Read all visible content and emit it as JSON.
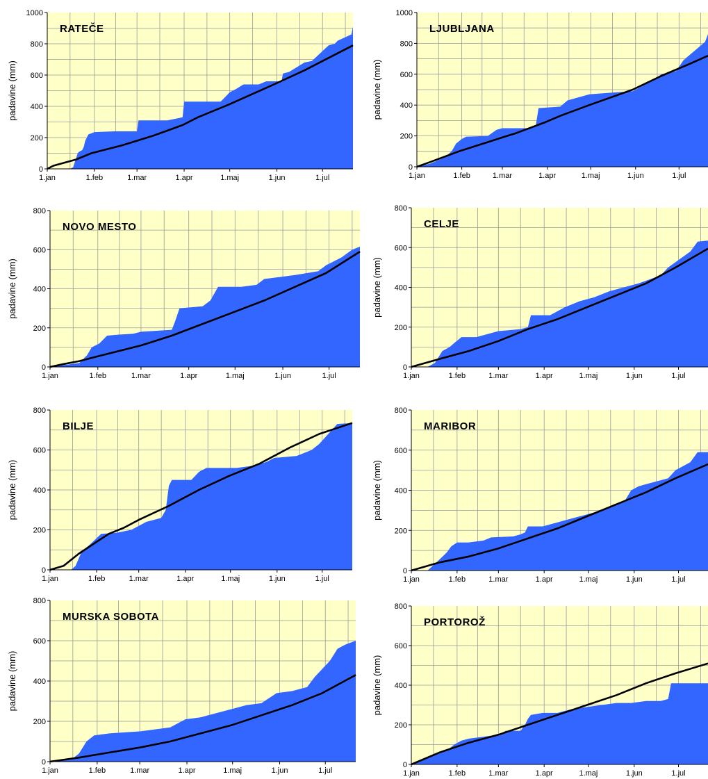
{
  "chart_data": [
    {
      "type": "area",
      "title": "RATEČE",
      "ylabel": "padavine (mm)",
      "ylim": [
        0,
        1000
      ],
      "yticks": [
        0,
        200,
        400,
        600,
        800,
        1000
      ],
      "xticks": [
        "1.jan",
        "1.feb",
        "1.mar",
        "1.apr",
        "1.maj",
        "1.jun",
        "1.jul"
      ],
      "grid": true,
      "colors": {
        "area": "#3366ff",
        "line": "#000000",
        "plot_bg": "#ffffc8"
      },
      "series": [
        {
          "type": "area",
          "x": [
            1,
            16,
            18,
            21,
            22,
            24,
            25,
            26,
            28,
            32,
            45,
            60,
            61,
            80,
            85,
            90,
            91,
            115,
            121,
            125,
            130,
            140,
            145,
            155,
            156,
            160,
            170,
            175,
            186,
            190,
            192,
            201,
            202
          ],
          "y": [
            0,
            0,
            10,
            100,
            110,
            120,
            140,
            180,
            220,
            235,
            240,
            240,
            310,
            310,
            320,
            330,
            430,
            430,
            490,
            510,
            540,
            540,
            560,
            560,
            610,
            620,
            680,
            690,
            790,
            800,
            820,
            860,
            910
          ]
        },
        {
          "type": "line",
          "x": [
            1,
            5,
            20,
            30,
            50,
            60,
            70,
            90,
            100,
            120,
            150,
            170,
            190,
            202
          ],
          "y": [
            0,
            20,
            60,
            100,
            150,
            180,
            210,
            280,
            330,
            410,
            540,
            630,
            730,
            790
          ]
        }
      ]
    },
    {
      "type": "area",
      "title": "LJUBLJANA",
      "ylabel": "padavine (mm)",
      "ylim": [
        0,
        1000
      ],
      "yticks": [
        0,
        200,
        400,
        600,
        800,
        1000
      ],
      "xticks": [
        "1.jan",
        "1.feb",
        "1.mar",
        "1.apr",
        "1.maj",
        "1.jun",
        "1.jul"
      ],
      "grid": true,
      "colors": {
        "area": "#3366ff",
        "line": "#000000",
        "plot_bg": "#ffffc8"
      },
      "series": [
        {
          "type": "area",
          "x": [
            1,
            10,
            20,
            25,
            28,
            32,
            35,
            50,
            56,
            60,
            78,
            83,
            85,
            100,
            105,
            120,
            135,
            150,
            160,
            170,
            180,
            185,
            190,
            200,
            202
          ],
          "y": [
            0,
            20,
            60,
            100,
            150,
            180,
            195,
            200,
            240,
            250,
            250,
            260,
            380,
            390,
            430,
            470,
            480,
            490,
            540,
            600,
            620,
            690,
            730,
            810,
            860
          ]
        },
        {
          "type": "line",
          "x": [
            1,
            10,
            30,
            50,
            60,
            70,
            90,
            100,
            120,
            150,
            170,
            190,
            202
          ],
          "y": [
            0,
            30,
            100,
            160,
            190,
            220,
            290,
            330,
            400,
            500,
            590,
            670,
            720
          ]
        }
      ]
    },
    {
      "type": "area",
      "title": "NOVO MESTO",
      "ylabel": "padavine (mm)",
      "ylim": [
        0,
        800
      ],
      "yticks": [
        0,
        200,
        400,
        600,
        800
      ],
      "xticks": [
        "1.jan",
        "1.feb",
        "1.mar",
        "1.apr",
        "1.maj",
        "1.jun",
        "1.jul"
      ],
      "grid": true,
      "colors": {
        "area": "#3366ff",
        "line": "#000000",
        "plot_bg": "#ffffc8"
      },
      "series": [
        {
          "type": "area",
          "x": [
            1,
            20,
            25,
            28,
            33,
            38,
            45,
            55,
            60,
            80,
            82,
            85,
            100,
            105,
            110,
            125,
            135,
            140,
            150,
            160,
            175,
            180,
            190,
            197,
            202
          ],
          "y": [
            0,
            20,
            60,
            100,
            120,
            160,
            165,
            170,
            180,
            190,
            230,
            300,
            310,
            340,
            410,
            410,
            420,
            450,
            460,
            470,
            490,
            520,
            560,
            600,
            615
          ]
        },
        {
          "type": "line",
          "x": [
            1,
            10,
            20,
            30,
            40,
            60,
            80,
            100,
            120,
            140,
            160,
            180,
            202
          ],
          "y": [
            0,
            15,
            30,
            50,
            70,
            110,
            160,
            220,
            280,
            340,
            410,
            480,
            590
          ]
        }
      ]
    },
    {
      "type": "area",
      "title": "CELJE",
      "ylabel": "padavine (mm)",
      "ylim": [
        0,
        800
      ],
      "yticks": [
        0,
        200,
        400,
        600,
        800
      ],
      "xticks": [
        "1.jan",
        "1.feb",
        "1.mar",
        "1.apr",
        "1.maj",
        "1.jun",
        "1.jul"
      ],
      "grid": true,
      "colors": {
        "area": "#3366ff",
        "line": "#000000",
        "plot_bg": "#ffffc8"
      },
      "series": [
        {
          "type": "area",
          "x": [
            1,
            12,
            17,
            22,
            27,
            30,
            35,
            45,
            50,
            60,
            75,
            80,
            82,
            95,
            105,
            115,
            125,
            135,
            145,
            155,
            170,
            175,
            190,
            195,
            202
          ],
          "y": [
            0,
            0,
            20,
            80,
            100,
            120,
            150,
            150,
            160,
            180,
            190,
            200,
            260,
            260,
            300,
            330,
            350,
            380,
            400,
            420,
            460,
            500,
            580,
            630,
            635
          ]
        },
        {
          "type": "line",
          "x": [
            1,
            20,
            40,
            60,
            80,
            100,
            120,
            140,
            160,
            180,
            202
          ],
          "y": [
            0,
            40,
            80,
            130,
            190,
            240,
            300,
            360,
            420,
            500,
            595
          ]
        }
      ]
    },
    {
      "type": "area",
      "title": "BILJE",
      "ylabel": "padavine (mm)",
      "ylim": [
        0,
        800
      ],
      "yticks": [
        0,
        200,
        400,
        600,
        800
      ],
      "xticks": [
        "1.jan",
        "1.feb",
        "1.mar",
        "1.apr",
        "1.maj",
        "1.jun",
        "1.jul"
      ],
      "grid": true,
      "colors": {
        "area": "#3366ff",
        "line": "#000000",
        "plot_bg": "#ffffc8"
      },
      "series": [
        {
          "type": "area",
          "x": [
            1,
            15,
            18,
            22,
            28,
            35,
            45,
            55,
            65,
            75,
            78,
            80,
            82,
            95,
            100,
            105,
            125,
            135,
            145,
            150,
            165,
            175,
            180,
            192,
            202
          ],
          "y": [
            0,
            0,
            20,
            90,
            130,
            180,
            185,
            200,
            240,
            260,
            300,
            420,
            450,
            450,
            490,
            510,
            510,
            520,
            540,
            560,
            570,
            600,
            630,
            730,
            735
          ]
        },
        {
          "type": "line",
          "x": [
            1,
            10,
            20,
            30,
            40,
            50,
            60,
            80,
            100,
            120,
            140,
            160,
            180,
            202
          ],
          "y": [
            0,
            20,
            80,
            130,
            180,
            210,
            250,
            320,
            400,
            470,
            530,
            610,
            680,
            735
          ]
        }
      ]
    },
    {
      "type": "area",
      "title": "MARIBOR",
      "ylabel": "padavine (mm)",
      "ylim": [
        0,
        800
      ],
      "yticks": [
        0,
        200,
        400,
        600,
        800
      ],
      "xticks": [
        "1.jan",
        "1.feb",
        "1.mar",
        "1.apr",
        "1.maj",
        "1.jun",
        "1.jul"
      ],
      "grid": true,
      "colors": {
        "area": "#3366ff",
        "line": "#000000",
        "plot_bg": "#ffffc8"
      },
      "series": [
        {
          "type": "area",
          "x": [
            1,
            12,
            18,
            25,
            28,
            32,
            40,
            50,
            55,
            70,
            75,
            78,
            80,
            90,
            100,
            110,
            120,
            130,
            140,
            145,
            150,
            155,
            160,
            175,
            180,
            190,
            195,
            202
          ],
          "y": [
            0,
            0,
            40,
            90,
            120,
            140,
            140,
            150,
            165,
            170,
            180,
            190,
            220,
            220,
            240,
            260,
            280,
            300,
            330,
            340,
            400,
            420,
            430,
            460,
            500,
            540,
            590,
            590
          ]
        },
        {
          "type": "line",
          "x": [
            1,
            20,
            40,
            60,
            80,
            100,
            120,
            140,
            160,
            180,
            202
          ],
          "y": [
            0,
            40,
            70,
            110,
            160,
            210,
            270,
            330,
            390,
            460,
            530
          ]
        }
      ]
    },
    {
      "type": "area",
      "title": "MURSKA SOBOTA",
      "ylabel": "padavine (mm)",
      "ylim": [
        0,
        800
      ],
      "yticks": [
        0,
        200,
        400,
        600,
        800
      ],
      "xticks": [
        "1.jan",
        "1.feb",
        "1.mar",
        "1.apr",
        "1.maj",
        "1.jun",
        "1.jul"
      ],
      "grid": true,
      "colors": {
        "area": "#3366ff",
        "line": "#000000",
        "plot_bg": "#ffffc8"
      },
      "series": [
        {
          "type": "area",
          "x": [
            1,
            15,
            20,
            25,
            30,
            40,
            50,
            60,
            70,
            80,
            90,
            100,
            110,
            120,
            130,
            140,
            150,
            160,
            165,
            170,
            175,
            180,
            185,
            190,
            195,
            202
          ],
          "y": [
            0,
            10,
            40,
            100,
            130,
            140,
            145,
            150,
            160,
            170,
            210,
            220,
            240,
            260,
            280,
            290,
            340,
            350,
            360,
            370,
            420,
            460,
            500,
            560,
            580,
            600
          ]
        },
        {
          "type": "line",
          "x": [
            1,
            20,
            40,
            60,
            80,
            100,
            120,
            140,
            160,
            180,
            202
          ],
          "y": [
            0,
            20,
            45,
            70,
            100,
            140,
            180,
            230,
            280,
            340,
            430
          ]
        }
      ]
    },
    {
      "type": "area",
      "title": "PORTOROŽ",
      "ylabel": "padavine (mm)",
      "ylim": [
        0,
        800
      ],
      "yticks": [
        0,
        200,
        400,
        600,
        800
      ],
      "xticks": [
        "1.jan",
        "1.feb",
        "1.mar",
        "1.apr",
        "1.maj",
        "1.jun",
        "1.jul"
      ],
      "grid": true,
      "colors": {
        "area": "#3366ff",
        "line": "#000000",
        "plot_bg": "#ffffc8"
      },
      "series": [
        {
          "type": "area",
          "x": [
            1,
            25,
            30,
            35,
            40,
            50,
            60,
            65,
            75,
            78,
            80,
            82,
            90,
            100,
            110,
            120,
            130,
            140,
            150,
            160,
            170,
            175,
            177,
            202
          ],
          "y": [
            0,
            70,
            100,
            120,
            130,
            140,
            150,
            170,
            170,
            200,
            230,
            250,
            260,
            260,
            280,
            290,
            300,
            310,
            310,
            320,
            320,
            330,
            410,
            410
          ]
        },
        {
          "type": "line",
          "x": [
            1,
            20,
            40,
            60,
            80,
            100,
            120,
            140,
            160,
            180,
            202
          ],
          "y": [
            0,
            60,
            110,
            150,
            200,
            250,
            300,
            350,
            410,
            460,
            510
          ]
        }
      ]
    }
  ]
}
